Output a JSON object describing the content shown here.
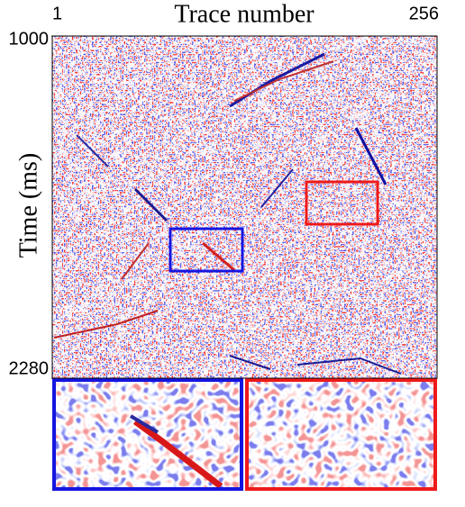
{
  "chart_data": {
    "type": "heatmap",
    "title": "Trace number",
    "ylabel": "Time (ms)",
    "xlim": [
      1,
      256
    ],
    "xticks": [
      1,
      256
    ],
    "ylim": [
      1000,
      2280
    ],
    "yticks": [
      1000,
      2280
    ]
  }
}
